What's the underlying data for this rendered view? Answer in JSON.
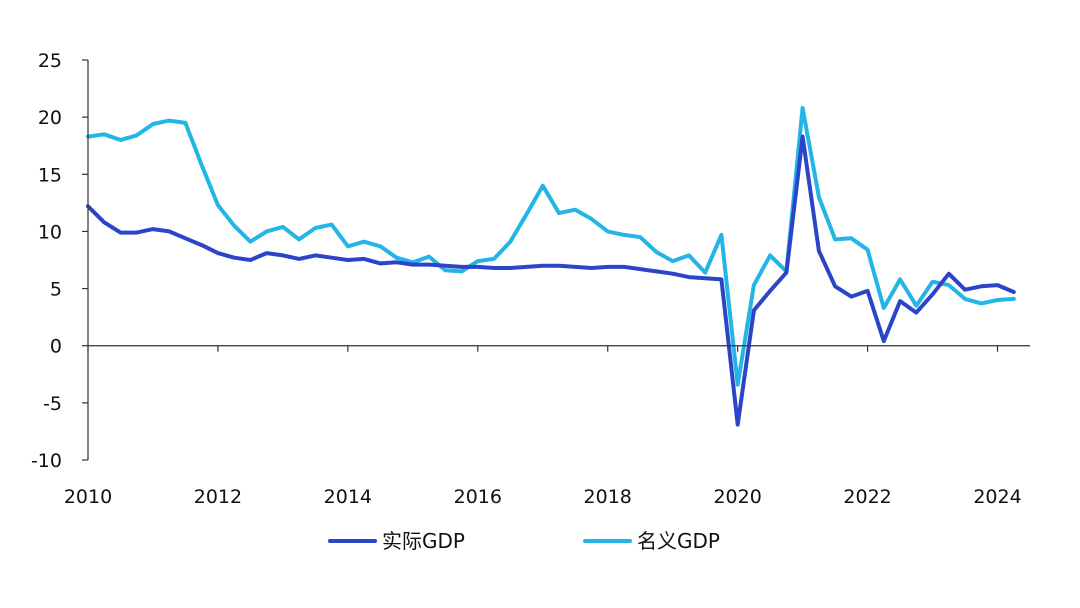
{
  "chart_data": {
    "type": "line",
    "title": "",
    "xlabel": "",
    "ylabel": "",
    "x_range": [
      2010,
      2024.5
    ],
    "ylim": [
      -10,
      25
    ],
    "y_ticks": [
      -10,
      -5,
      0,
      5,
      10,
      15,
      20,
      25
    ],
    "y_tick_labels": [
      "-10",
      "-5",
      "0",
      "5",
      "10",
      "15",
      "20",
      "25"
    ],
    "x_ticks": [
      2010,
      2012,
      2014,
      2016,
      2018,
      2020,
      2022,
      2024
    ],
    "x_tick_labels": [
      "2010",
      "2012",
      "2014",
      "2016",
      "2018",
      "2020",
      "2022",
      "2024"
    ],
    "grid": false,
    "legend_position": "bottom-center",
    "series": [
      {
        "name": "实际GDP",
        "color": "#2a45c8",
        "points": [
          [
            2010.0,
            12.2
          ],
          [
            2010.25,
            10.8
          ],
          [
            2010.5,
            9.9
          ],
          [
            2010.75,
            9.9
          ],
          [
            2011.0,
            10.2
          ],
          [
            2011.25,
            10.0
          ],
          [
            2011.5,
            9.4
          ],
          [
            2011.75,
            8.8
          ],
          [
            2012.0,
            8.1
          ],
          [
            2012.25,
            7.7
          ],
          [
            2012.5,
            7.5
          ],
          [
            2012.75,
            8.1
          ],
          [
            2013.0,
            7.9
          ],
          [
            2013.25,
            7.6
          ],
          [
            2013.5,
            7.9
          ],
          [
            2013.75,
            7.7
          ],
          [
            2014.0,
            7.5
          ],
          [
            2014.25,
            7.6
          ],
          [
            2014.5,
            7.2
          ],
          [
            2014.75,
            7.3
          ],
          [
            2015.0,
            7.1
          ],
          [
            2015.25,
            7.1
          ],
          [
            2015.5,
            7.0
          ],
          [
            2015.75,
            6.9
          ],
          [
            2016.0,
            6.9
          ],
          [
            2016.25,
            6.8
          ],
          [
            2016.5,
            6.8
          ],
          [
            2016.75,
            6.9
          ],
          [
            2017.0,
            7.0
          ],
          [
            2017.25,
            7.0
          ],
          [
            2017.5,
            6.9
          ],
          [
            2017.75,
            6.8
          ],
          [
            2018.0,
            6.9
          ],
          [
            2018.25,
            6.9
          ],
          [
            2018.5,
            6.7
          ],
          [
            2018.75,
            6.5
          ],
          [
            2019.0,
            6.3
          ],
          [
            2019.25,
            6.0
          ],
          [
            2019.5,
            5.9
          ],
          [
            2019.75,
            5.8
          ],
          [
            2020.0,
            -6.9
          ],
          [
            2020.25,
            3.1
          ],
          [
            2020.5,
            4.8
          ],
          [
            2020.75,
            6.4
          ],
          [
            2021.0,
            18.3
          ],
          [
            2021.25,
            8.3
          ],
          [
            2021.5,
            5.2
          ],
          [
            2021.75,
            4.3
          ],
          [
            2022.0,
            4.8
          ],
          [
            2022.25,
            0.4
          ],
          [
            2022.5,
            3.9
          ],
          [
            2022.75,
            2.9
          ],
          [
            2023.0,
            4.5
          ],
          [
            2023.25,
            6.3
          ],
          [
            2023.5,
            4.9
          ],
          [
            2023.75,
            5.2
          ],
          [
            2024.0,
            5.3
          ],
          [
            2024.25,
            4.7
          ]
        ]
      },
      {
        "name": "名义GDP",
        "color": "#22b5e6",
        "points": [
          [
            2010.0,
            18.3
          ],
          [
            2010.25,
            18.5
          ],
          [
            2010.5,
            18.0
          ],
          [
            2010.75,
            18.4
          ],
          [
            2011.0,
            19.4
          ],
          [
            2011.25,
            19.7
          ],
          [
            2011.5,
            19.5
          ],
          [
            2011.75,
            15.8
          ],
          [
            2012.0,
            12.3
          ],
          [
            2012.25,
            10.5
          ],
          [
            2012.5,
            9.1
          ],
          [
            2012.75,
            10.0
          ],
          [
            2013.0,
            10.4
          ],
          [
            2013.25,
            9.3
          ],
          [
            2013.5,
            10.3
          ],
          [
            2013.75,
            10.6
          ],
          [
            2014.0,
            8.7
          ],
          [
            2014.25,
            9.1
          ],
          [
            2014.5,
            8.7
          ],
          [
            2014.75,
            7.7
          ],
          [
            2015.0,
            7.3
          ],
          [
            2015.25,
            7.8
          ],
          [
            2015.5,
            6.6
          ],
          [
            2015.75,
            6.5
          ],
          [
            2016.0,
            7.4
          ],
          [
            2016.25,
            7.6
          ],
          [
            2016.5,
            9.1
          ],
          [
            2016.75,
            11.5
          ],
          [
            2017.0,
            14.0
          ],
          [
            2017.25,
            11.6
          ],
          [
            2017.5,
            11.9
          ],
          [
            2017.75,
            11.1
          ],
          [
            2018.0,
            10.0
          ],
          [
            2018.25,
            9.7
          ],
          [
            2018.5,
            9.5
          ],
          [
            2018.75,
            8.2
          ],
          [
            2019.0,
            7.4
          ],
          [
            2019.25,
            7.9
          ],
          [
            2019.5,
            6.4
          ],
          [
            2019.75,
            9.7
          ],
          [
            2020.0,
            -3.4
          ],
          [
            2020.25,
            5.3
          ],
          [
            2020.5,
            7.9
          ],
          [
            2020.75,
            6.5
          ],
          [
            2021.0,
            20.8
          ],
          [
            2021.25,
            13.0
          ],
          [
            2021.5,
            9.3
          ],
          [
            2021.75,
            9.4
          ],
          [
            2022.0,
            8.4
          ],
          [
            2022.25,
            3.3
          ],
          [
            2022.5,
            5.8
          ],
          [
            2022.75,
            3.5
          ],
          [
            2023.0,
            5.6
          ],
          [
            2023.25,
            5.3
          ],
          [
            2023.5,
            4.1
          ],
          [
            2023.75,
            3.7
          ],
          [
            2024.0,
            4.0
          ],
          [
            2024.25,
            4.1
          ]
        ]
      }
    ]
  }
}
